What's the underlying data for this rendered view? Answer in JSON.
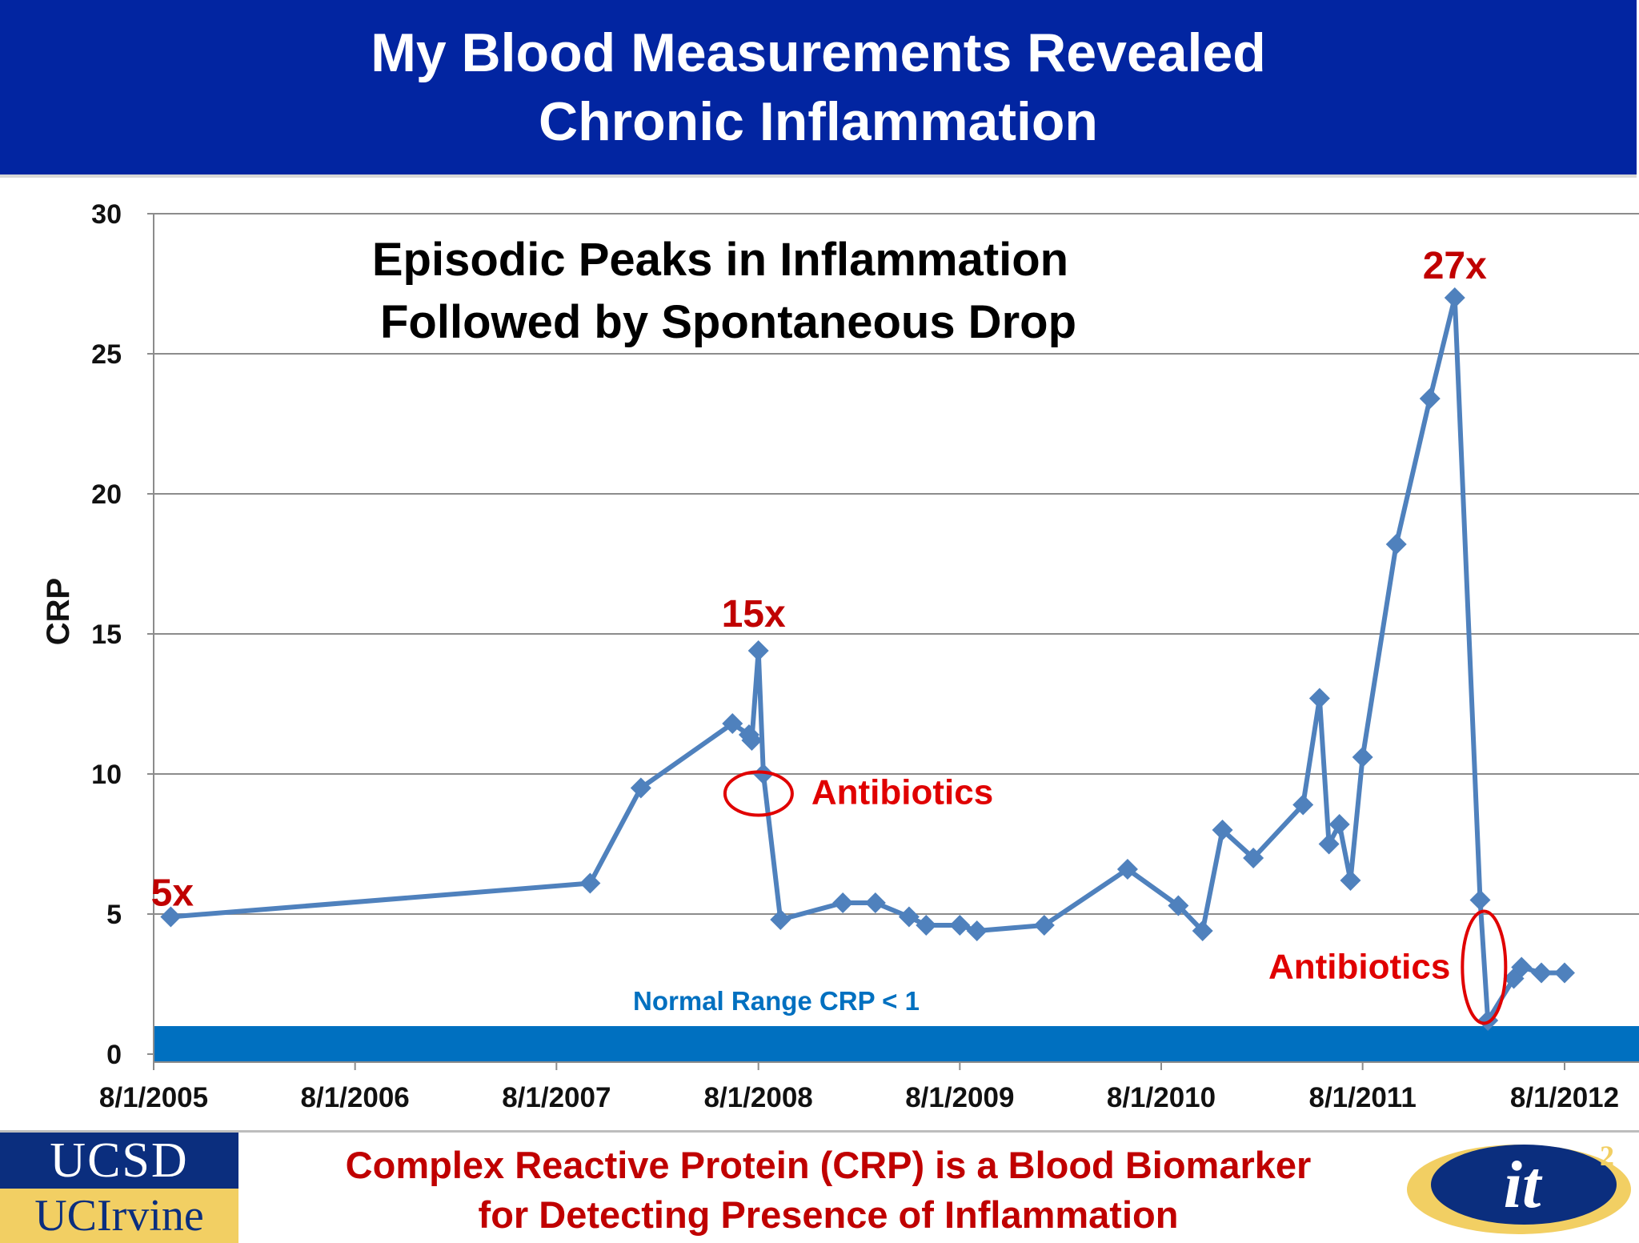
{
  "slide": {
    "title_line1": "My Blood Measurements Revealed",
    "title_line2": "Chronic Inflammation",
    "caption_line1": "Complex Reactive Protein (CRP) is a Blood Biomarker",
    "caption_line2": "for Detecting Presence of Inflammation",
    "logo_ucsd": "UCSD",
    "logo_uci": "UCIrvine",
    "logo_it2": "it",
    "logo_it2_superscript": "2"
  },
  "colors": {
    "banner": "#0225a1",
    "series_line": "#4f81bd",
    "marker": "#4f81bd",
    "normal_band": "#0070c0",
    "annotation_red": "#c00000",
    "normal_range_text": "#0070c0"
  },
  "chart_data": {
    "type": "line",
    "title": "Episodic Peaks in Inflammation",
    "subtitle": "Followed by Spontaneous Drop",
    "xlabel": "",
    "ylabel": "CRP",
    "x_type": "date",
    "xlim": [
      "2005-08-01",
      "2012-08-01"
    ],
    "x_ticks": [
      "8/1/2005",
      "8/1/2006",
      "8/1/2007",
      "8/1/2008",
      "8/1/2009",
      "8/1/2010",
      "8/1/2011",
      "8/1/2012"
    ],
    "ylim": [
      0,
      30
    ],
    "y_ticks": [
      0,
      5,
      10,
      15,
      20,
      25,
      30
    ],
    "grid": "horizontal",
    "legend": "none",
    "series": [
      {
        "x": [
          "2005-09-01",
          "2007-10-01",
          "2008-01-01",
          "2008-06-15",
          "2008-07-15",
          "2008-07-20",
          "2008-08-01",
          "2008-08-10",
          "2008-09-10",
          "2009-01-01",
          "2009-03-01",
          "2009-05-01",
          "2009-06-01",
          "2009-08-01",
          "2009-09-01",
          "2010-01-01",
          "2010-06-01",
          "2010-09-01",
          "2010-10-15",
          "2010-11-20",
          "2011-01-15",
          "2011-04-15",
          "2011-05-15",
          "2011-06-01",
          "2011-06-20",
          "2011-07-10",
          "2011-08-01",
          "2011-10-01",
          "2011-12-01",
          "2012-01-15",
          "2012-03-01",
          "2012-03-15",
          "2012-05-01",
          "2012-05-15",
          "2012-06-20",
          "2012-08-01"
        ],
        "y": [
          4.9,
          6.1,
          9.5,
          11.8,
          11.4,
          11.2,
          14.4,
          10.0,
          4.8,
          5.4,
          5.4,
          4.9,
          4.6,
          4.6,
          4.4,
          4.6,
          6.6,
          5.3,
          4.4,
          8.0,
          7.0,
          8.9,
          12.7,
          7.5,
          8.2,
          6.2,
          10.6,
          18.2,
          23.4,
          27.0,
          5.5,
          1.2,
          2.7,
          3.1,
          2.9,
          2.9
        ]
      }
    ],
    "annotations": [
      {
        "text": "5x",
        "at_date": "2005-09-01",
        "at_value": 4.9
      },
      {
        "text": "15x",
        "at_date": "2008-08-01",
        "at_value": 14.4
      },
      {
        "text": "27x",
        "at_date": "2012-01-15",
        "at_value": 27.0
      },
      {
        "text": "Antibiotics",
        "at_date": "2008-08-10",
        "at_value": 9.3
      },
      {
        "text": "Antibiotics",
        "at_date": "2012-03-08",
        "at_value": 3.1
      }
    ],
    "normal_range": {
      "label": "Normal Range CRP < 1",
      "upper": 1,
      "lower": 0
    }
  }
}
